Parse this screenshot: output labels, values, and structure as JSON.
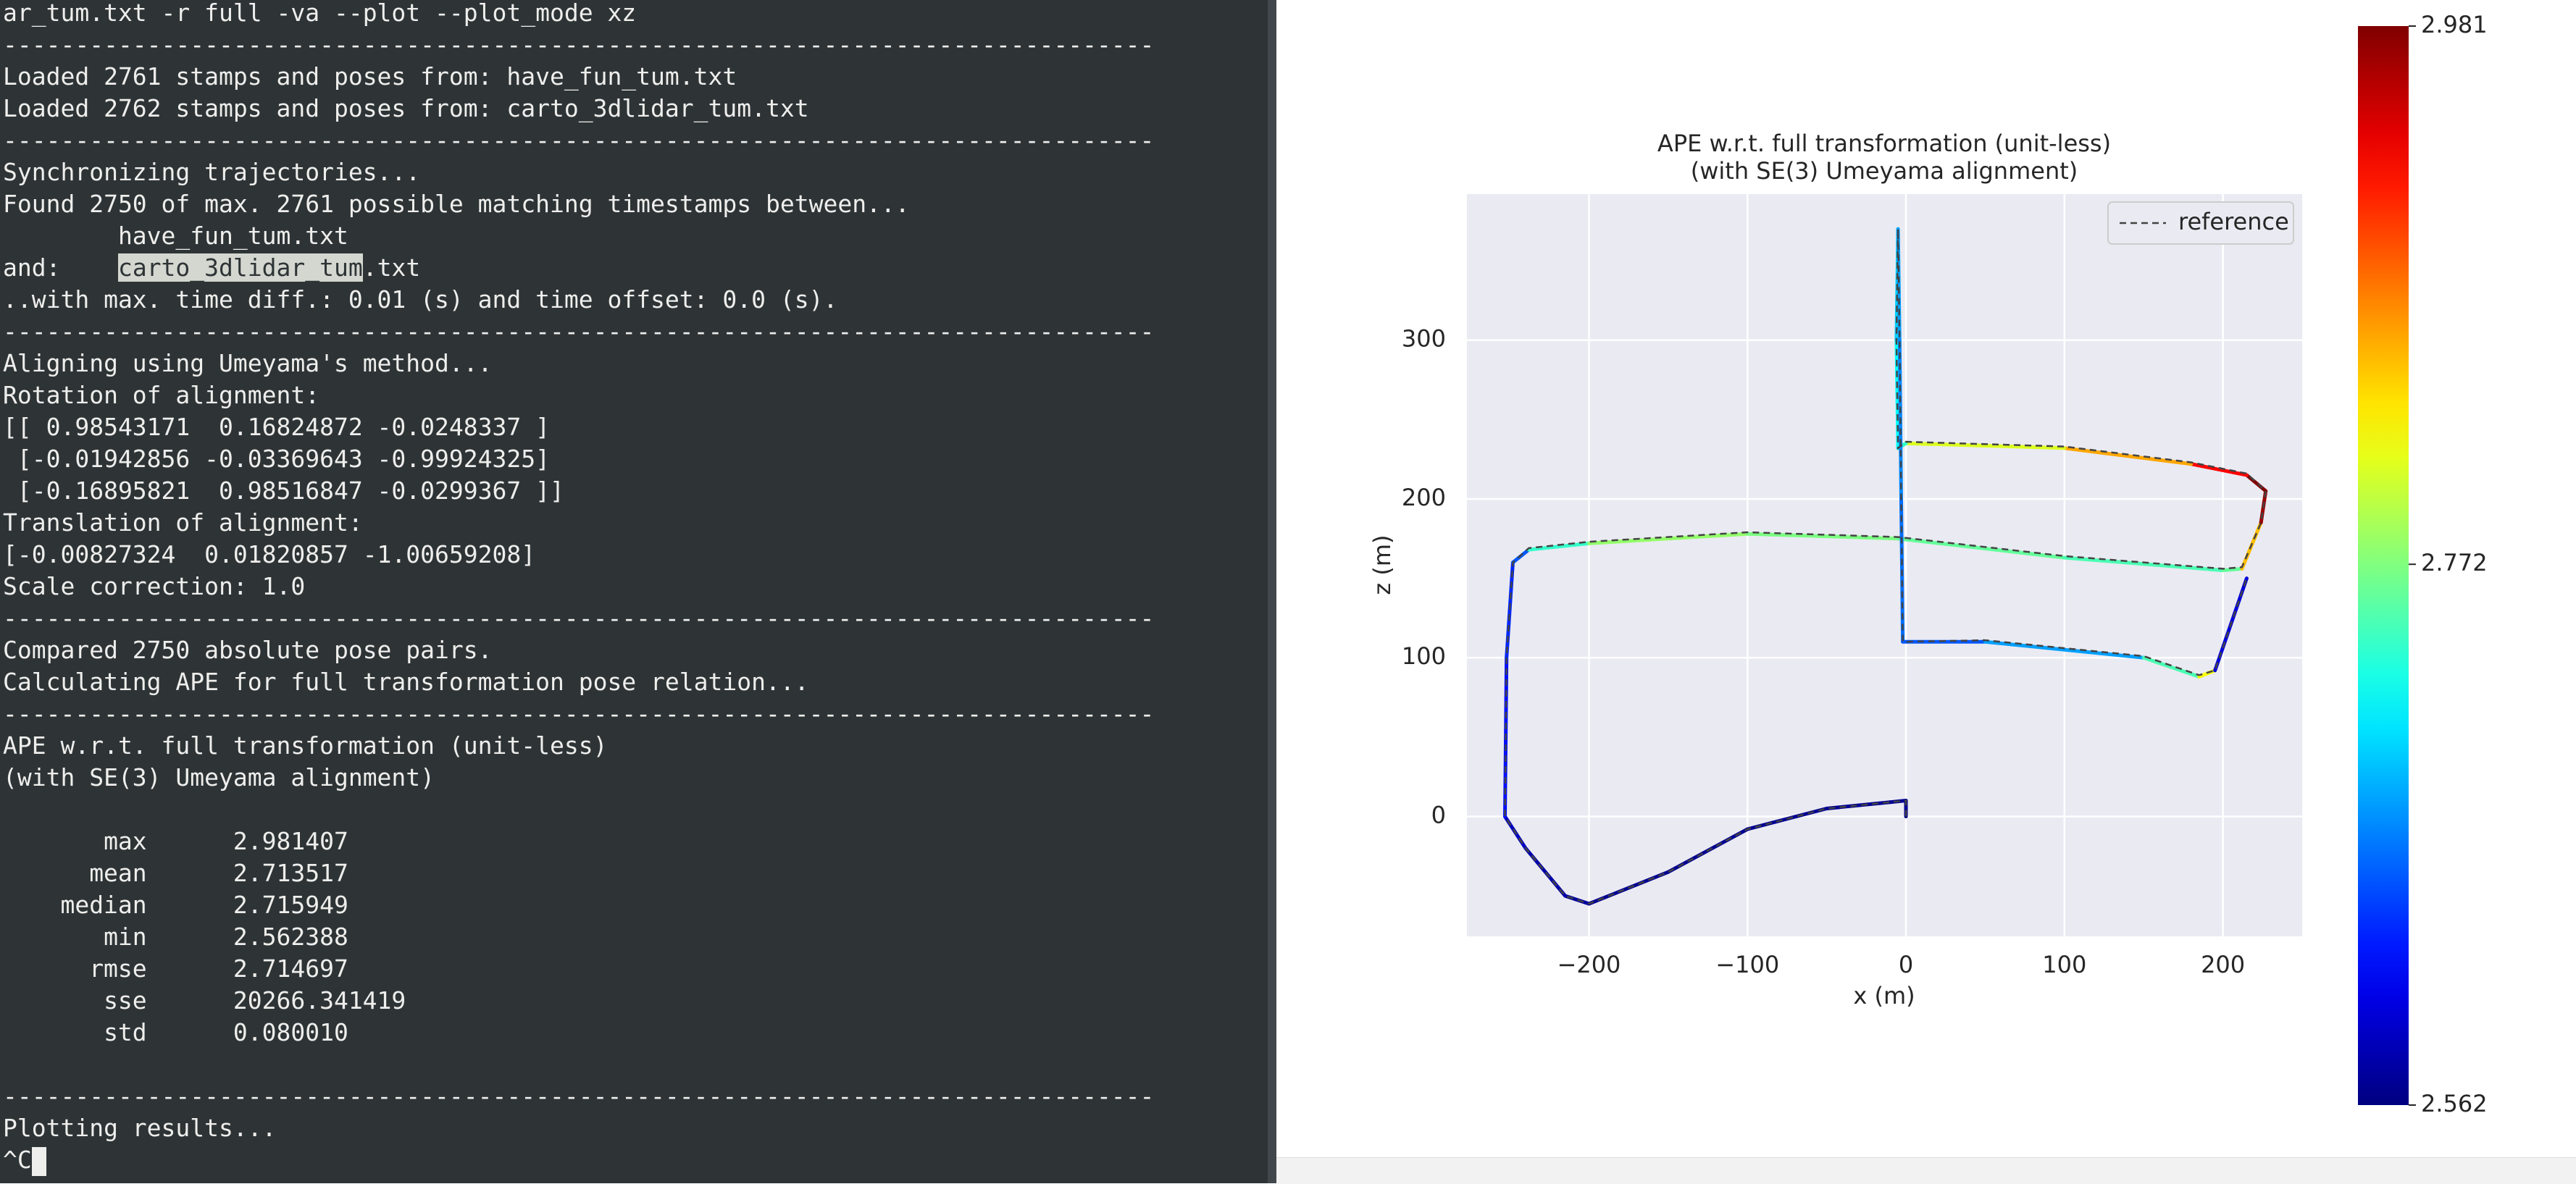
{
  "terminal": {
    "blocks": [
      [
        "ar_tum.txt -r full -va --plot --plot_mode xz",
        "--------------------------------------------------------------------------------",
        "Loaded 2761 stamps and poses from: have_fun_tum.txt",
        "Loaded 2762 stamps and poses from: carto_3dlidar_tum.txt",
        "--------------------------------------------------------------------------------",
        "Synchronizing trajectories...",
        "Found 2750 of max. 2761 possible matching timestamps between...",
        "        have_fun_tum.txt",
        {
          "segments": [
            "and:    ",
            "carto_3dlidar_tum",
            ".txt"
          ],
          "selected": 1
        },
        "..with max. time diff.: 0.01 (s) and time offset: 0.0 (s).",
        "--------------------------------------------------------------------------------",
        "Aligning using Umeyama's method...",
        "Rotation of alignment:",
        "[[ 0.98543171  0.16824872 -0.0248337 ]",
        " [-0.01942856 -0.03369643 -0.99924325]",
        " [-0.16895821  0.98516847 -0.0299367 ]]",
        "Translation of alignment:",
        "[-0.00827324  0.01820857 -1.00659208]",
        "Scale correction: 1.0",
        "--------------------------------------------------------------------------------",
        "Compared 2750 absolute pose pairs.",
        "Calculating APE for full transformation pose relation...",
        "--------------------------------------------------------------------------------",
        "APE w.r.t. full transformation (unit-less)",
        "(with SE(3) Umeyama alignment)"
      ],
      [
        {
          "name": "max",
          "value": "2.981407"
        },
        {
          "name": "mean",
          "value": "2.713517"
        },
        {
          "name": "median",
          "value": "2.715949"
        },
        {
          "name": "min",
          "value": "2.562388"
        },
        {
          "name": "rmse",
          "value": "2.714697"
        },
        {
          "name": "sse",
          "value": "20266.341419"
        },
        {
          "name": "std",
          "value": "0.080010"
        }
      ],
      [
        "--------------------------------------------------------------------------------",
        "Plotting results...",
        "^C"
      ]
    ]
  },
  "chart_data": {
    "type": "trajectory",
    "title": "APE w.r.t. full transformation (unit-less)",
    "subtitle": "(with SE(3) Umeyama alignment)",
    "x_label": "x (m)",
    "y_label": "z (m)",
    "xlim": [
      -277,
      250
    ],
    "ylim": [
      -75.5,
      392
    ],
    "xticks": [
      {
        "value": -200,
        "label": "−200"
      },
      {
        "value": -100,
        "label": "−100"
      },
      0,
      100,
      200
    ],
    "yticks": [
      0,
      100,
      200,
      300
    ],
    "grid": true,
    "legend": "upper right",
    "colorbar": {
      "lim": [
        2.562,
        2.981
      ],
      "ticks": [
        2.981,
        2.772,
        2.562
      ],
      "colormap": "jet"
    },
    "series": [
      {
        "name": "reference",
        "color": "#444444",
        "dashed": true,
        "x": [
          0,
          0,
          -10,
          -50,
          -100,
          -150,
          -200,
          -215,
          -240,
          -253,
          -252,
          -248,
          -238,
          -200,
          -100,
          -5,
          100,
          200,
          212,
          224,
          227,
          215,
          180,
          100,
          0,
          -5,
          -6,
          -5,
          -4,
          -3,
          -2,
          50,
          150,
          185,
          195,
          215
        ],
        "values": [
          0,
          10,
          9,
          5,
          -8,
          -35,
          -55,
          -50,
          -20,
          0,
          100,
          160,
          169,
          173,
          179,
          176,
          164,
          156,
          157,
          185,
          205,
          216,
          223,
          233,
          236,
          232,
          300,
          370,
          300,
          200,
          110,
          111,
          101,
          89,
          92,
          150
        ]
      },
      {
        "color": "jet",
        "x": [
          0,
          0,
          -10,
          -50,
          -100,
          -150,
          -200,
          -215,
          -240,
          -253,
          -252,
          -248,
          -238,
          -200,
          -100,
          -5,
          100,
          200,
          212,
          224,
          227,
          215,
          180,
          100,
          0,
          -5,
          -6,
          -5,
          -4,
          -3,
          -2,
          50,
          150,
          185,
          195,
          215
        ],
        "values": [
          0,
          10,
          9,
          5,
          -8,
          -35,
          -55,
          -50,
          -20,
          0,
          100,
          160,
          168,
          172,
          178,
          175,
          163,
          155,
          156,
          185,
          205,
          215,
          222,
          232,
          235,
          232,
          300,
          370,
          300,
          200,
          110,
          110,
          100,
          88,
          92,
          150
        ],
        "ape": [
          2.57,
          2.57,
          2.57,
          2.57,
          2.57,
          2.57,
          2.575,
          2.58,
          2.59,
          2.62,
          2.63,
          2.65,
          2.74,
          2.78,
          2.77,
          2.76,
          2.75,
          2.76,
          2.85,
          2.97,
          2.98,
          2.93,
          2.86,
          2.81,
          2.74,
          2.72,
          2.7,
          2.68,
          2.67,
          2.66,
          2.65,
          2.68,
          2.75,
          2.82,
          2.6,
          2.58
        ]
      }
    ]
  }
}
